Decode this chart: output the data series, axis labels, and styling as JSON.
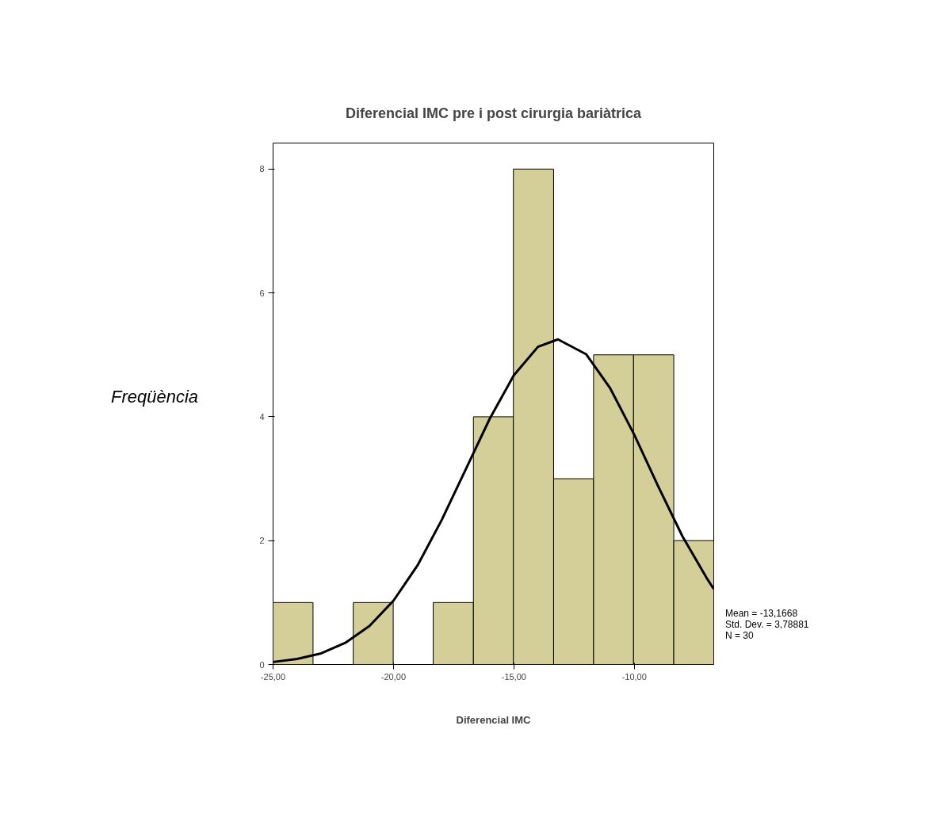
{
  "chart_data": {
    "type": "histogram",
    "title": "Diferencial IMC pre i post cirurgia bariàtrica",
    "xlabel": "Diferencial IMC",
    "ylabel": "Freqüència",
    "bins": [
      -25,
      -23.34,
      -21.67,
      -20.01,
      -18.35,
      -16.68,
      -15.02,
      -13.35,
      -11.69,
      -10.03,
      -8.36,
      -6.7
    ],
    "values": [
      1,
      0,
      1,
      0,
      1,
      4,
      8,
      3,
      5,
      5,
      2
    ],
    "color": "#d4cf98",
    "series": [
      {
        "type": "line",
        "color": "#000000",
        "x": [
          -25,
          -24,
          -23,
          -22,
          -21,
          -20,
          -19,
          -18,
          -17,
          -16,
          -15,
          -14,
          -13.17,
          -12,
          -11,
          -10,
          -9,
          -8,
          -7,
          -6.7
        ],
        "values": [
          0.04,
          0.09,
          0.18,
          0.35,
          0.62,
          1.03,
          1.6,
          2.33,
          3.15,
          3.97,
          4.67,
          5.13,
          5.25,
          5.01,
          4.46,
          3.71,
          2.87,
          2.07,
          1.4,
          1.22
        ]
      }
    ],
    "xlim": [
      -25,
      -6.7
    ],
    "ylim": [
      0,
      8.42
    ],
    "xticks": [
      {
        "value": -25,
        "label": "-25,00"
      },
      {
        "value": -20,
        "label": "-20,00"
      },
      {
        "value": -15,
        "label": "-15,00"
      },
      {
        "value": -10,
        "label": "-10,00"
      }
    ],
    "yticks": [
      0,
      2,
      4,
      6,
      8
    ],
    "annotations": [
      "Mean = -13,1668",
      "Std. Dev. = 3,78881",
      "N = 30"
    ]
  }
}
